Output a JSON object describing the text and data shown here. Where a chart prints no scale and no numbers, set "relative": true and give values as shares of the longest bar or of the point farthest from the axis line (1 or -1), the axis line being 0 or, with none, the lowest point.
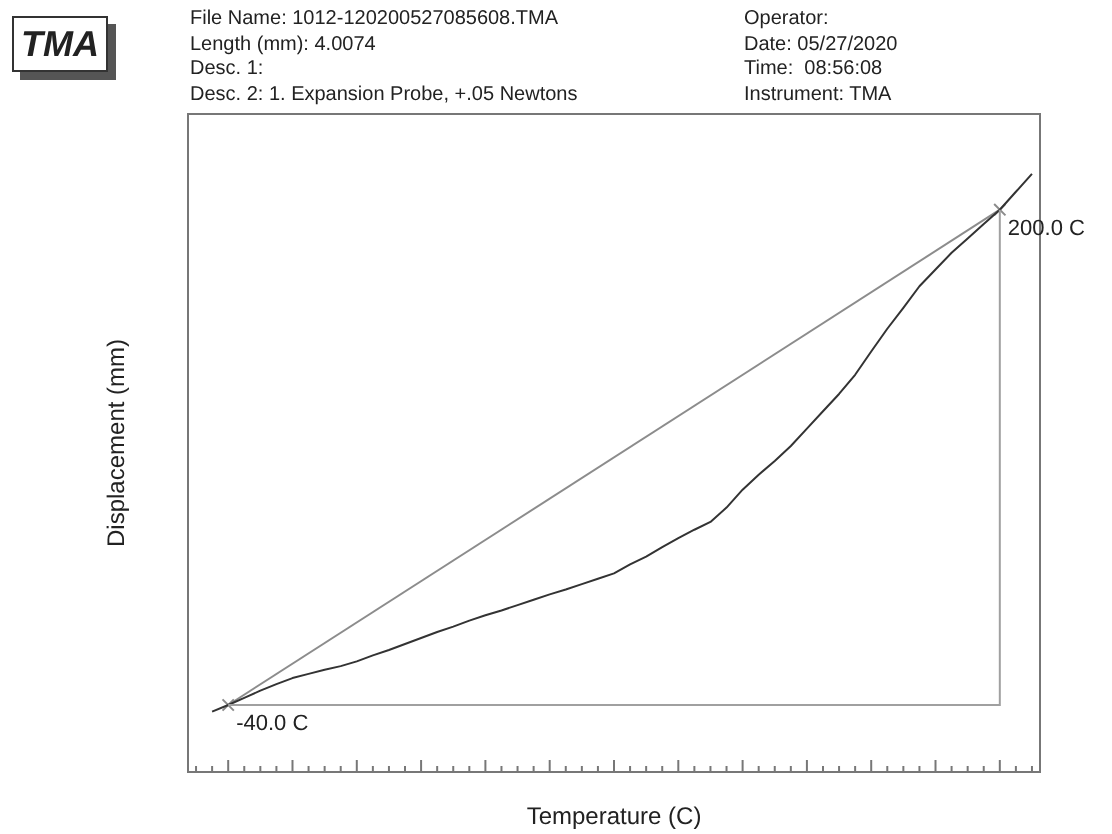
{
  "chart_data": {
    "type": "line",
    "relative": true,
    "xlabel": "Temperature (C)",
    "ylabel": "Displacement (mm)",
    "categories": [
      null,
      null,
      null,
      null,
      null,
      null,
      null,
      null,
      null,
      null,
      null,
      null,
      null,
      null,
      null,
      null,
      null,
      null,
      null,
      null,
      null,
      null,
      null,
      null,
      null,
      null,
      null,
      null,
      null,
      null,
      null,
      null,
      null,
      null,
      null,
      null,
      null,
      null,
      null,
      null,
      null,
      null,
      null,
      null,
      null,
      null,
      null,
      null,
      null,
      null,
      null,
      null,
      null
    ],
    "legend": false,
    "marker": "none",
    "line_style": "solid",
    "series": [
      {
        "color": "#333333",
        "values": [
          null,
          0.101,
          0.112,
          0.124,
          0.136,
          0.147,
          0.157,
          0.164,
          0.171,
          0.177,
          0.185,
          0.195,
          0.204,
          0.214,
          0.224,
          0.234,
          0.243,
          0.253,
          0.262,
          0.27,
          0.279,
          0.288,
          0.297,
          0.305,
          0.314,
          0.323,
          0.332,
          0.347,
          0.36,
          0.376,
          0.391,
          0.405,
          0.418,
          0.442,
          0.472,
          0.497,
          0.52,
          0.545,
          0.574,
          0.603,
          0.632,
          0.664,
          0.703,
          0.741,
          0.776,
          0.812,
          0.84,
          0.868,
          0.892,
          0.916,
          0.94,
          0.97,
          1
        ]
      },
      {
        "color": "#8c8c8c",
        "marker": "cross",
        "values": [
          null,
          null,
          0.112,
          null,
          null,
          null,
          null,
          null,
          null,
          null,
          null,
          null,
          null,
          null,
          null,
          null,
          null,
          null,
          null,
          null,
          null,
          null,
          null,
          null,
          null,
          null,
          null,
          null,
          null,
          null,
          null,
          null,
          null,
          null,
          null,
          null,
          null,
          null,
          null,
          null,
          null,
          null,
          null,
          null,
          null,
          null,
          null,
          null,
          null,
          null,
          0.94,
          null,
          null
        ]
      }
    ],
    "annotations": [
      "TMA",
      "File Name: 1012-120200527085608.TMA",
      "Length (mm): 4.0074",
      "Desc. 1:",
      "Desc. 2: 1. Expansion Probe, +.05 Newtons",
      "Operator:",
      "Date: 05/27/2020",
      "Time:  08:56:08",
      "Instrument: TMA",
      "-40.0 C",
      "200.0 C"
    ]
  }
}
